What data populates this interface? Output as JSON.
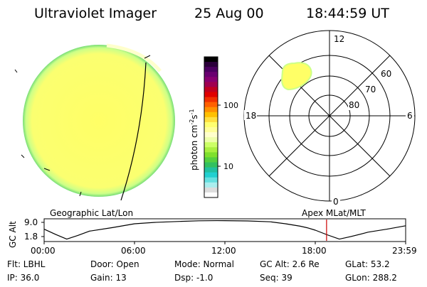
{
  "header": {
    "instrument": "Ultraviolet Imager",
    "date": "25 Aug 00",
    "time": "18:44:59 UT"
  },
  "colorbar": {
    "label": "photon cm",
    "exp1": "-2",
    "s_label": "s",
    "exp2": "-1",
    "ticks": [
      {
        "label": "100",
        "value": 100
      },
      {
        "label": "10",
        "value": 10
      }
    ],
    "colors": [
      "#000000",
      "#2b003a",
      "#4b0060",
      "#6a0070",
      "#880070",
      "#a00050",
      "#c00020",
      "#e00000",
      "#f03000",
      "#ff6000",
      "#ff9000",
      "#ffc000",
      "#ffe040",
      "#ffff70",
      "#ffff9a",
      "#ffffcc",
      "#eeffaa",
      "#ccff66",
      "#aaf040",
      "#7fe02e",
      "#55d040",
      "#33c060",
      "#22c0a0",
      "#22d0d0",
      "#66e0e0",
      "#aaeeee",
      "#dddddd",
      "#ffffff"
    ]
  },
  "panels": {
    "left_label": "Geographic Lat/Lon",
    "right_label": "Apex MLat/MLT"
  },
  "polar": {
    "hour_labels": {
      "top": "12",
      "left": "18",
      "right": "6",
      "bottom": "0"
    },
    "lat_labels": [
      "60",
      "70",
      "80"
    ]
  },
  "orbit": {
    "ylabel_gc": "GC",
    "ylabel_alt": "Alt",
    "y_max": "9.0",
    "y_min": "1.8",
    "x_ticks": [
      "00:00",
      "06:00",
      "12:00",
      "18:00",
      "23:59"
    ],
    "current_time": "18:44:59",
    "current_hour": 18.75,
    "line_color": "#cc0000"
  },
  "info": {
    "flt": "Flt: LBHL",
    "door": "Door: Open",
    "mode": "Mode: Normal",
    "gc_alt": "GC Alt: 2.6 Re",
    "glat": "GLat:  53.2",
    "ip": "IP: 36.0",
    "gain": "Gain: 13",
    "dsp": "Dsp:   -1.0",
    "seq": "Seq: 39",
    "glon": "GLon: 288.2"
  },
  "colors": {
    "earth_fill": "#ffff66",
    "earth_edge": "#ccff77",
    "edge_green": "#88dd66",
    "aurora_fill": "#ffff66",
    "aurora_edge": "#ccff88"
  }
}
